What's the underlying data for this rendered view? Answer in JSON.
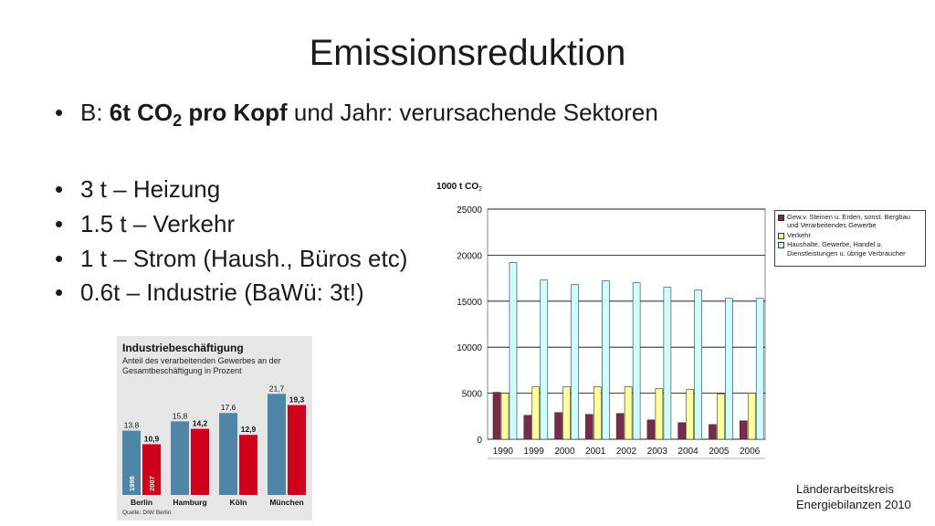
{
  "slide": {
    "title": "Emissionsreduktion",
    "bullet1": {
      "prefix": "B: ",
      "bold_a": "6t CO",
      "bold_sub": "2",
      "bold_b": " pro Kopf",
      "rest": " und Jahr: verursachende Sektoren"
    },
    "bullets": [
      "3 t – Heizung",
      "1.5 t – Verkehr",
      "1 t – Strom (Haush., Büros etc)",
      "0.6t – Industrie (BaWü: 3t!)"
    ],
    "source": [
      "Länderarbeitskreis",
      "Energiebilanzen 2010"
    ]
  },
  "chart_data": [
    {
      "type": "bar",
      "title": "1000 t CO2",
      "categories": [
        "1990",
        "1999",
        "2000",
        "2001",
        "2002",
        "2003",
        "2004",
        "2005",
        "2006"
      ],
      "ylim": [
        0,
        25000
      ],
      "yticks": [
        0,
        5000,
        10000,
        15000,
        20000,
        25000
      ],
      "grid": true,
      "legend_position": "top-right",
      "series": [
        {
          "name": "Gew.v. Steinen u. Erden, sonst. Bergbau und Verarbeitendes Gewerbe",
          "color": "#7a2a4a",
          "values": [
            5100,
            2600,
            2900,
            2700,
            2800,
            2100,
            1800,
            1600,
            2000
          ]
        },
        {
          "name": "Verkehr",
          "color": "#ffff99",
          "values": [
            5000,
            5700,
            5700,
            5700,
            5700,
            5500,
            5400,
            4900,
            5000
          ]
        },
        {
          "name": "Haushalte, Gewerbe, Handel u. Dienstleistungen u. übrige Verbraucher",
          "color": "#ccffff",
          "values": [
            19200,
            17300,
            16800,
            17200,
            17000,
            16500,
            16200,
            15300,
            15300
          ]
        }
      ]
    },
    {
      "type": "bar",
      "title": "Industriebeschäftigung",
      "subtitle": "Anteil des verarbeitenden Gewerbes an der Gesamtbeschäftigung in Prozent",
      "source": "Quelle: DIW Berlin",
      "categories": [
        "Berlin",
        "Hamburg",
        "Köln",
        "München"
      ],
      "ylim": [
        0,
        24
      ],
      "series": [
        {
          "name": "1998",
          "color": "#4f86a7",
          "values": [
            13.8,
            15.8,
            17.6,
            21.7
          ],
          "labels": [
            "13,8",
            "15,8",
            "17,6",
            "21,7"
          ]
        },
        {
          "name": "2007",
          "color": "#d0021b",
          "values": [
            10.9,
            14.2,
            12.9,
            19.3
          ],
          "labels": [
            "10,9",
            "14,2",
            "12,9",
            "19,3"
          ]
        }
      ]
    }
  ]
}
